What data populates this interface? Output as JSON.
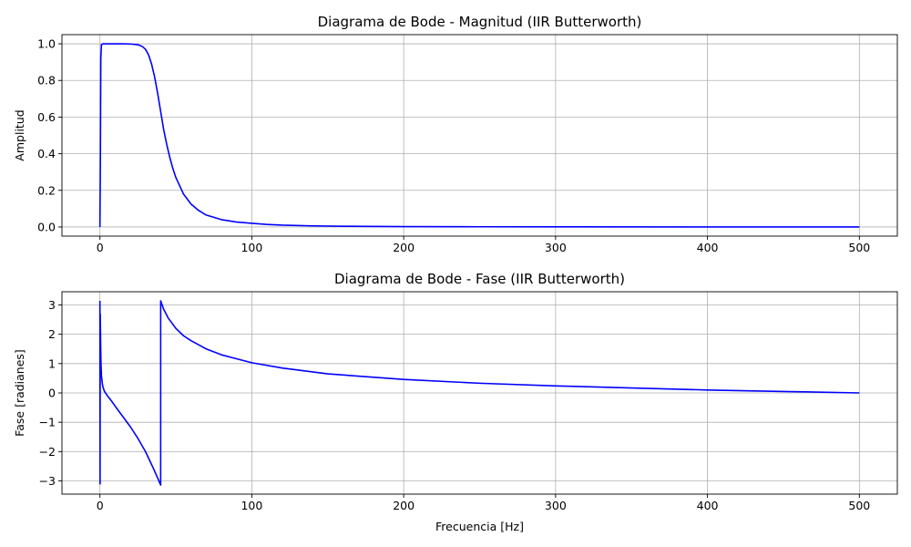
{
  "figure": {
    "background": "#ffffff"
  },
  "chart_data": [
    {
      "type": "line",
      "title": "Diagrama de Bode - Magnitud (IIR Butterworth)",
      "xlabel": "",
      "ylabel": "Amplitud",
      "xlim": [
        -25,
        525
      ],
      "ylim": [
        -0.05,
        1.05
      ],
      "xticks": [
        0,
        100,
        200,
        300,
        400,
        500
      ],
      "yticks": [
        0.0,
        0.2,
        0.4,
        0.6,
        0.8,
        1.0
      ],
      "xtick_labels": [
        "0",
        "100",
        "200",
        "300",
        "400",
        "500"
      ],
      "ytick_labels": [
        "0.0",
        "0.2",
        "0.4",
        "0.6",
        "0.8",
        "1.0"
      ],
      "grid": true,
      "legend": "none",
      "series": [
        {
          "color": "#0000ff",
          "x": [
            0,
            0.3,
            0.6,
            1,
            2,
            5,
            10,
            15,
            20,
            25,
            28,
            30,
            32,
            34,
            36,
            38,
            40,
            42,
            44,
            46,
            48,
            50,
            55,
            60,
            65,
            70,
            80,
            90,
            100,
            110,
            120,
            140,
            160,
            200,
            250,
            300,
            400,
            500
          ],
          "y": [
            0.0,
            0.35,
            0.92,
            0.995,
            1.0,
            1.0,
            1.0,
            1.0,
            0.999,
            0.995,
            0.985,
            0.97,
            0.94,
            0.89,
            0.82,
            0.73,
            0.63,
            0.53,
            0.45,
            0.38,
            0.32,
            0.27,
            0.18,
            0.125,
            0.09,
            0.065,
            0.04,
            0.027,
            0.02,
            0.014,
            0.01,
            0.006,
            0.004,
            0.002,
            0.001,
            0.0005,
            0.0002,
            0.0
          ]
        }
      ]
    },
    {
      "type": "line",
      "title": "Diagrama de Bode - Fase (IIR Butterworth)",
      "xlabel": "Frecuencia [Hz]",
      "ylabel": "Fase [radianes]",
      "xlim": [
        -25,
        525
      ],
      "ylim": [
        -3.45,
        3.45
      ],
      "xticks": [
        0,
        100,
        200,
        300,
        400,
        500
      ],
      "yticks": [
        -3,
        -2,
        -1,
        0,
        1,
        2,
        3
      ],
      "xtick_labels": [
        "0",
        "100",
        "200",
        "300",
        "400",
        "500"
      ],
      "ytick_labels": [
        "−3",
        "−2",
        "−1",
        "0",
        "1",
        "2",
        "3"
      ],
      "grid": true,
      "legend": "none",
      "series": [
        {
          "color": "#0000ff",
          "x": [
            0,
            0.1,
            0.2,
            0.35,
            0.5,
            0.7,
            1,
            1.5,
            2,
            3,
            5,
            8,
            10,
            15,
            20,
            25,
            30,
            35,
            38,
            40,
            40.01,
            42,
            45,
            50,
            55,
            60,
            70,
            80,
            100,
            120,
            150,
            200,
            250,
            300,
            350,
            400,
            450,
            500
          ],
          "y": [
            3.14,
            -3.1,
            2.7,
            2.2,
            1.6,
            1.0,
            0.6,
            0.35,
            0.2,
            0.05,
            -0.1,
            -0.3,
            -0.45,
            -0.8,
            -1.15,
            -1.55,
            -2.0,
            -2.55,
            -2.9,
            -3.14,
            3.14,
            2.85,
            2.55,
            2.2,
            1.95,
            1.78,
            1.5,
            1.3,
            1.03,
            0.85,
            0.65,
            0.46,
            0.33,
            0.24,
            0.17,
            0.1,
            0.05,
            0.0
          ]
        }
      ]
    }
  ]
}
